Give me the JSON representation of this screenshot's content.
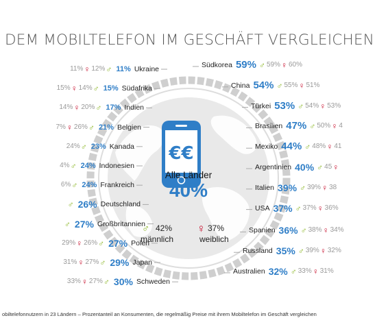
{
  "title": "DEM MOBILTELEFON IM GESCHÄFT VERGLEICHEN",
  "footnote": "obiltelefonnutzern in 23 Ländern – Prozentanteil an Konsumenten, die regelmäßig Preise mit ihrem Mobiltelefon im Geschäft vergleichen",
  "center": {
    "label": "Alle Länder",
    "total": "40%",
    "male": "42%",
    "female": "37%",
    "male_label": "männlich",
    "female_label": "weiblich"
  },
  "colors": {
    "accent": "#2f7ec7",
    "male": "#8ab523",
    "female": "#c8102e",
    "ring": "#cfcfcf"
  },
  "icons": [
    "phone-icon",
    "euro-icon",
    "male-icon",
    "female-icon",
    "globe-icon"
  ],
  "chart_data": {
    "type": "table",
    "columns": [
      "country",
      "total",
      "male",
      "female"
    ],
    "left": [
      {
        "country": "Ukraine",
        "total": "11%",
        "female": "11%",
        "male": "12%"
      },
      {
        "country": "Südafrika",
        "total": "15%",
        "female": "15%",
        "male": "14%"
      },
      {
        "country": "Indien",
        "total": "17%",
        "female": "14%",
        "male": "20%"
      },
      {
        "country": "Belgien",
        "total": "21%",
        "female": "7%",
        "male": "26%"
      },
      {
        "country": "Kanada",
        "total": "23%",
        "female": "",
        "male": "24%"
      },
      {
        "country": "Indonesien",
        "total": "24%",
        "female": "",
        "male": "4%"
      },
      {
        "country": "Frankreich",
        "total": "24%",
        "female": "",
        "male": "6%"
      },
      {
        "country": "Deutschland",
        "total": "26%",
        "female": "",
        "male": ""
      },
      {
        "country": "Großbritannien",
        "total": "27%",
        "female": "",
        "male": ""
      },
      {
        "country": "Polen",
        "total": "27%",
        "female": "29%",
        "male": "26%"
      },
      {
        "country": "Japan",
        "total": "29%",
        "female": "31%",
        "male": "27%"
      },
      {
        "country": "Schweden",
        "total": "30%",
        "female": "33%",
        "male": "27%"
      }
    ],
    "right": [
      {
        "country": "Südkorea",
        "total": "59%",
        "male": "59%",
        "female": "60%"
      },
      {
        "country": "China",
        "total": "54%",
        "male": "55%",
        "female": "51%"
      },
      {
        "country": "Türkei",
        "total": "53%",
        "male": "54%",
        "female": "53%"
      },
      {
        "country": "Brasilien",
        "total": "47%",
        "male": "50%",
        "female": "4"
      },
      {
        "country": "Mexiko",
        "total": "44%",
        "male": "48%",
        "female": "41"
      },
      {
        "country": "Argentinien",
        "total": "40%",
        "male": "45",
        "female": ""
      },
      {
        "country": "Italien",
        "total": "39%",
        "male": "39%",
        "female": "38"
      },
      {
        "country": "USA",
        "total": "37%",
        "male": "37%",
        "female": "36%"
      },
      {
        "country": "Spanien",
        "total": "36%",
        "male": "38%",
        "female": "34%"
      },
      {
        "country": "Russland",
        "total": "35%",
        "male": "39%",
        "female": "32%"
      },
      {
        "country": "Australien",
        "total": "32%",
        "male": "33%",
        "female": "31%"
      }
    ]
  }
}
